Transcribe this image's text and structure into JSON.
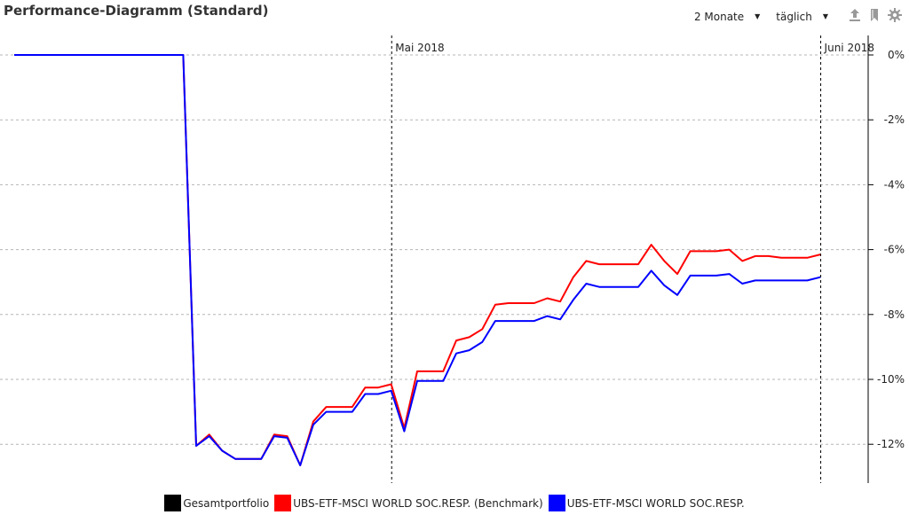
{
  "header": {
    "title": "Performance-Diagramm (Standard)",
    "range_label": "2 Monate",
    "interval_label": "täglich"
  },
  "icons": [
    "export-icon",
    "bookmark-icon",
    "gear-icon"
  ],
  "chart_data": {
    "type": "line",
    "title": "Performance-Diagramm (Standard)",
    "y_axis": {
      "position": "right",
      "ylim": [
        -13.3,
        0.3
      ],
      "ticks": [
        0,
        -2,
        -4,
        -6,
        -8,
        -10,
        -12
      ],
      "tick_labels": [
        "0%",
        "-2%",
        "-4%",
        "-6%",
        "-8%",
        "-10%",
        "-12%"
      ],
      "grid": true
    },
    "x_axis": {
      "points": 66,
      "month_markers": [
        {
          "label": "Mai 2018",
          "index": 29
        },
        {
          "label": "Juni 2018",
          "index": 62
        }
      ]
    },
    "series": [
      {
        "name": "Gesamtportfolio",
        "color": "#000000",
        "values": []
      },
      {
        "name": "UBS-ETF-MSCI WORLD SOC.RESP. (Benchmark)",
        "color": "#ff0000",
        "values": [
          0,
          0,
          0,
          0,
          0,
          0,
          0,
          0,
          0,
          0,
          0,
          0,
          0,
          0,
          -12.05,
          -11.7,
          -12.2,
          -12.45,
          -12.45,
          -12.45,
          -11.7,
          -11.75,
          -12.65,
          -11.3,
          -10.85,
          -10.85,
          -10.85,
          -10.25,
          -10.25,
          -10.15,
          -11.5,
          -9.75,
          -9.75,
          -9.75,
          -8.8,
          -8.7,
          -8.45,
          -7.7,
          -7.65,
          -7.65,
          -7.65,
          -7.5,
          -7.6,
          -6.85,
          -6.35,
          -6.45,
          -6.45,
          -6.45,
          -6.45,
          -5.85,
          -6.35,
          -6.75,
          -6.05,
          -6.05,
          -6.05,
          -6.0,
          -6.35,
          -6.2,
          -6.2,
          -6.25,
          -6.25,
          -6.25,
          -6.15
        ]
      },
      {
        "name": "UBS-ETF-MSCI WORLD SOC.RESP.",
        "color": "#0000ff",
        "values": [
          0,
          0,
          0,
          0,
          0,
          0,
          0,
          0,
          0,
          0,
          0,
          0,
          0,
          0,
          -12.05,
          -11.75,
          -12.2,
          -12.45,
          -12.45,
          -12.45,
          -11.75,
          -11.8,
          -12.65,
          -11.4,
          -11.0,
          -11.0,
          -11.0,
          -10.45,
          -10.45,
          -10.35,
          -11.6,
          -10.05,
          -10.05,
          -10.05,
          -9.2,
          -9.1,
          -8.85,
          -8.2,
          -8.2,
          -8.2,
          -8.2,
          -8.05,
          -8.15,
          -7.55,
          -7.05,
          -7.15,
          -7.15,
          -7.15,
          -7.15,
          -6.65,
          -7.1,
          -7.4,
          -6.8,
          -6.8,
          -6.8,
          -6.75,
          -7.05,
          -6.95,
          -6.95,
          -6.95,
          -6.95,
          -6.95,
          -6.85
        ]
      }
    ],
    "legend": {
      "placement": "bottom-center"
    }
  }
}
